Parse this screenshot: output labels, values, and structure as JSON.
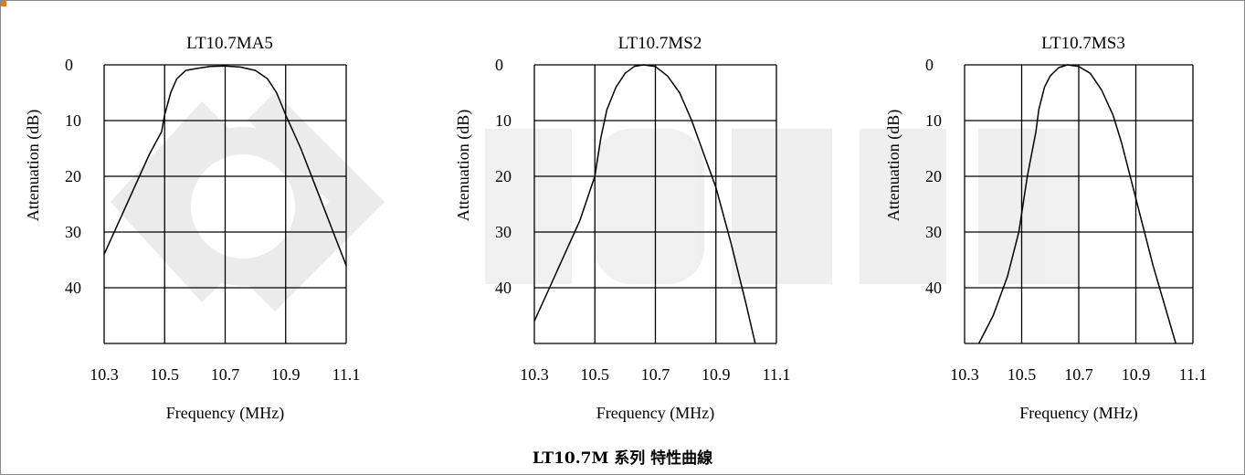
{
  "colors": {
    "grid": "#000000",
    "curve": "#000000",
    "text": "#000000",
    "watermark": "#d9d9d9",
    "accent": "#e87a1a"
  },
  "caption": "LT10.7M 系列 特性曲線",
  "chart_data": [
    {
      "type": "line",
      "title": "LT10.7MA5",
      "xlabel": "Frequency (MHz)",
      "ylabel": "Attenuation (dB)",
      "xlim": [
        10.3,
        11.1
      ],
      "ylim": [
        0,
        50
      ],
      "y_inverted": true,
      "grid": true,
      "x_ticks": [
        "10.3",
        "10.5",
        "10.7",
        "10.9",
        "11.1"
      ],
      "y_ticks": [
        "0",
        "10",
        "20",
        "30",
        "40"
      ],
      "series": [
        {
          "x": [
            10.3,
            10.35,
            10.4,
            10.45,
            10.49,
            10.5,
            10.52,
            10.54,
            10.57,
            10.6,
            10.65,
            10.7,
            10.75,
            10.8,
            10.84,
            10.87,
            10.9,
            10.95,
            11.0,
            11.05,
            11.1
          ],
          "y": [
            34,
            28,
            22,
            16,
            12,
            9,
            5,
            2.5,
            1,
            0.7,
            0.3,
            0.2,
            0.4,
            1,
            2.5,
            5,
            9,
            15,
            22,
            29,
            36
          ]
        }
      ]
    },
    {
      "type": "line",
      "title": "LT10.7MS2",
      "xlabel": "Frequency (MHz)",
      "ylabel": "Attenuation (dB)",
      "xlim": [
        10.3,
        11.1
      ],
      "ylim": [
        0,
        50
      ],
      "y_inverted": true,
      "grid": true,
      "x_ticks": [
        "10.3",
        "10.5",
        "10.7",
        "10.9",
        "11.1"
      ],
      "y_ticks": [
        "0",
        "10",
        "20",
        "30",
        "40"
      ],
      "series": [
        {
          "x": [
            10.3,
            10.35,
            10.4,
            10.45,
            10.5,
            10.52,
            10.54,
            10.57,
            10.6,
            10.63,
            10.66,
            10.7,
            10.74,
            10.78,
            10.82,
            10.86,
            10.9,
            10.95,
            11.0,
            11.03
          ],
          "y": [
            46,
            40,
            34,
            28,
            20,
            13,
            8,
            4,
            1.5,
            0.3,
            0,
            0.3,
            2,
            5,
            10,
            16,
            22,
            32,
            43,
            50
          ]
        }
      ]
    },
    {
      "type": "line",
      "title": "LT10.7MS3",
      "xlabel": "Frequency (MHz)",
      "ylabel": "Attenuation (dB)",
      "xlim": [
        10.3,
        11.1
      ],
      "ylim": [
        0,
        50
      ],
      "y_inverted": true,
      "grid": true,
      "x_ticks": [
        "10.3",
        "10.5",
        "10.7",
        "10.9",
        "11.1"
      ],
      "y_ticks": [
        "0",
        "10",
        "20",
        "30",
        "40"
      ],
      "series": [
        {
          "x": [
            10.35,
            10.4,
            10.45,
            10.49,
            10.52,
            10.55,
            10.56,
            10.58,
            10.6,
            10.63,
            10.66,
            10.7,
            10.74,
            10.78,
            10.82,
            10.85,
            10.88,
            10.92,
            10.96,
            11.0,
            11.04
          ],
          "y": [
            50,
            45,
            38,
            30,
            20,
            12,
            8,
            4,
            2,
            0.5,
            0,
            0.3,
            1.5,
            4.5,
            9,
            14,
            20,
            28,
            36,
            43,
            50
          ]
        }
      ]
    }
  ]
}
